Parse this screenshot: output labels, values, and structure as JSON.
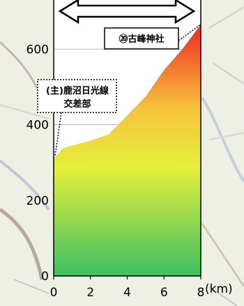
{
  "chart_data": {
    "type": "area",
    "x": [
      0,
      0.5,
      1,
      2,
      3,
      4,
      5,
      6,
      7,
      8
    ],
    "y": [
      310,
      338,
      345,
      358,
      375,
      425,
      475,
      545,
      600,
      665
    ],
    "xticks": [
      0,
      2,
      4,
      6,
      8
    ],
    "yticks": [
      0,
      200,
      400,
      600
    ],
    "xlim": [
      0,
      8
    ],
    "ylim": [
      0,
      730
    ],
    "xunit": "(km)",
    "grid": "horizontal",
    "fill": "vertical gradient by elevation: green (low) to yellow to red (high)",
    "annotations": {
      "start": {
        "line1": "(主)鹿沼日光線",
        "line2": "交差部",
        "x": 0,
        "y": 310
      },
      "end": {
        "label": "⑳古峰神社",
        "x": 8,
        "y": 665
      }
    },
    "arrow": "double-headed arrow spanning the x range"
  },
  "colors": {
    "low": "#3cbf63",
    "mid": "#e6ef3b",
    "high": "#ef3a27",
    "plot_bg": "#ffffff",
    "grid": "#b9b9b9"
  }
}
